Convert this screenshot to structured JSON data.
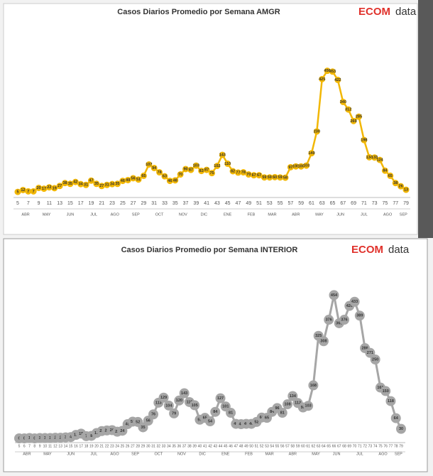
{
  "chart_data": [
    {
      "type": "line",
      "title": "Casos Diarios  Promedio por Semana AMGR",
      "logo_mark": "ECOM",
      "logo_text": "data",
      "x": [
        5,
        6,
        7,
        8,
        9,
        10,
        11,
        12,
        13,
        14,
        15,
        16,
        17,
        18,
        19,
        20,
        21,
        22,
        23,
        24,
        25,
        26,
        27,
        28,
        29,
        30,
        31,
        32,
        33,
        34,
        35,
        36,
        37,
        38,
        39,
        40,
        41,
        42,
        43,
        44,
        45,
        46,
        47,
        48,
        49,
        50,
        51,
        52,
        53,
        54,
        55,
        56,
        57,
        58,
        59,
        60,
        61,
        62,
        63,
        64,
        65,
        66,
        67,
        68,
        69,
        70,
        71,
        72,
        73,
        74,
        75,
        76,
        77,
        78,
        79
      ],
      "values": [
        5,
        12,
        7,
        7,
        20,
        17,
        22,
        19,
        27,
        38,
        35,
        42,
        34,
        31,
        47,
        35,
        27,
        31,
        34,
        35,
        46,
        49,
        56,
        51,
        65,
        107,
        94,
        78,
        63,
        46,
        48,
        70,
        90,
        87,
        103,
        83,
        87,
        75,
        102,
        143,
        110,
        82,
        77,
        78,
        70,
        67,
        67,
        59,
        59,
        60,
        59,
        58,
        97,
        100,
        100,
        103,
        149,
        230,
        425,
        456,
        453,
        422,
        340,
        312,
        269,
        285,
        198,
        134,
        133,
        124,
        84,
        65,
        38,
        26,
        13
      ],
      "color": "#f2b705",
      "xlim": [
        5,
        79
      ],
      "ylim": [
        0,
        500
      ],
      "xticks": [
        5,
        7,
        9,
        11,
        13,
        15,
        17,
        19,
        21,
        23,
        25,
        27,
        29,
        31,
        33,
        35,
        37,
        39,
        41,
        43,
        45,
        47,
        49,
        51,
        53,
        55,
        57,
        59,
        61,
        63,
        65,
        67,
        69,
        71,
        73,
        75,
        77,
        79
      ],
      "month_ticks": [
        {
          "value": 6.5,
          "label": "ABR"
        },
        {
          "value": 10.5,
          "label": "MAY"
        },
        {
          "value": 15,
          "label": "JUN"
        },
        {
          "value": 19.5,
          "label": "JUL"
        },
        {
          "value": 23.5,
          "label": "AGO"
        },
        {
          "value": 27.5,
          "label": "SEP"
        },
        {
          "value": 32,
          "label": "OCT"
        },
        {
          "value": 36.5,
          "label": "NOV"
        },
        {
          "value": 40.5,
          "label": "DIC"
        },
        {
          "value": 45,
          "label": "ENE"
        },
        {
          "value": 49.5,
          "label": "FEB"
        },
        {
          "value": 53.5,
          "label": "MAR"
        },
        {
          "value": 58,
          "label": "ABR"
        },
        {
          "value": 62.5,
          "label": "MAY"
        },
        {
          "value": 66.5,
          "label": "JUN"
        },
        {
          "value": 71,
          "label": "JUL"
        },
        {
          "value": 75.5,
          "label": "AGO"
        },
        {
          "value": 78.5,
          "label": "SEP"
        }
      ]
    },
    {
      "type": "line",
      "title": "Casos Diarios  Promedio por Semana INTERIOR",
      "logo_mark": "ECOM",
      "logo_text": "data",
      "x": [
        5,
        6,
        7,
        8,
        9,
        10,
        11,
        12,
        13,
        14,
        15,
        16,
        17,
        18,
        19,
        20,
        21,
        22,
        23,
        24,
        25,
        26,
        27,
        28,
        29,
        30,
        31,
        32,
        33,
        34,
        35,
        36,
        37,
        38,
        39,
        40,
        41,
        42,
        43,
        44,
        45,
        46,
        47,
        48,
        49,
        50,
        51,
        52,
        53,
        54,
        55,
        56,
        57,
        58,
        59,
        60,
        61,
        62,
        63,
        64,
        65,
        66,
        67,
        68,
        69,
        70,
        71,
        72,
        73,
        74,
        75,
        76,
        77,
        78,
        79
      ],
      "values": [
        0,
        0,
        1,
        0,
        1,
        1,
        1,
        2,
        2,
        3,
        4,
        11,
        15,
        7,
        8,
        17,
        23,
        25,
        26,
        21,
        24,
        45,
        53,
        52,
        35,
        56,
        76,
        113,
        129,
        104,
        79,
        120,
        143,
        115,
        105,
        59,
        65,
        54,
        84,
        127,
        101,
        81,
        46,
        45,
        46,
        46,
        52,
        66,
        65,
        84,
        96,
        81,
        108,
        134,
        112,
        98,
        103,
        168,
        325,
        308,
        376,
        454,
        365,
        376,
        420,
        433,
        389,
        286,
        271,
        250,
        161,
        150,
        118,
        64,
        30
      ],
      "color": "#a6a6a6",
      "xlim": [
        5,
        79
      ],
      "ylim": [
        0,
        500
      ],
      "xticks": [
        5,
        6,
        7,
        8,
        9,
        10,
        11,
        12,
        13,
        14,
        15,
        16,
        17,
        18,
        19,
        20,
        21,
        22,
        23,
        24,
        25,
        26,
        27,
        28,
        29,
        30,
        31,
        32,
        33,
        34,
        35,
        36,
        37,
        38,
        39,
        40,
        41,
        42,
        43,
        44,
        45,
        46,
        47,
        48,
        49,
        50,
        51,
        52,
        53,
        54,
        55,
        56,
        57,
        58,
        59,
        60,
        61,
        62,
        63,
        64,
        65,
        66,
        67,
        68,
        69,
        70,
        71,
        72,
        73,
        74,
        75,
        76,
        77,
        78,
        79
      ],
      "month_ticks": [
        {
          "value": 6.5,
          "label": "ABR"
        },
        {
          "value": 10.5,
          "label": "MAY"
        },
        {
          "value": 15,
          "label": "JUN"
        },
        {
          "value": 19.5,
          "label": "JUL"
        },
        {
          "value": 23.5,
          "label": "AGO"
        },
        {
          "value": 27.5,
          "label": "SEP"
        },
        {
          "value": 32,
          "label": "OCT"
        },
        {
          "value": 36.5,
          "label": "NOV"
        },
        {
          "value": 40.5,
          "label": "DIC"
        },
        {
          "value": 45,
          "label": "ENE"
        },
        {
          "value": 49.5,
          "label": "FEB"
        },
        {
          "value": 53.5,
          "label": "MAR"
        },
        {
          "value": 58,
          "label": "ABR"
        },
        {
          "value": 62.5,
          "label": "MAY"
        },
        {
          "value": 66.5,
          "label": "JUN"
        },
        {
          "value": 71,
          "label": "JUL"
        },
        {
          "value": 75.5,
          "label": "AGO"
        },
        {
          "value": 78.5,
          "label": "SEP"
        }
      ]
    }
  ]
}
